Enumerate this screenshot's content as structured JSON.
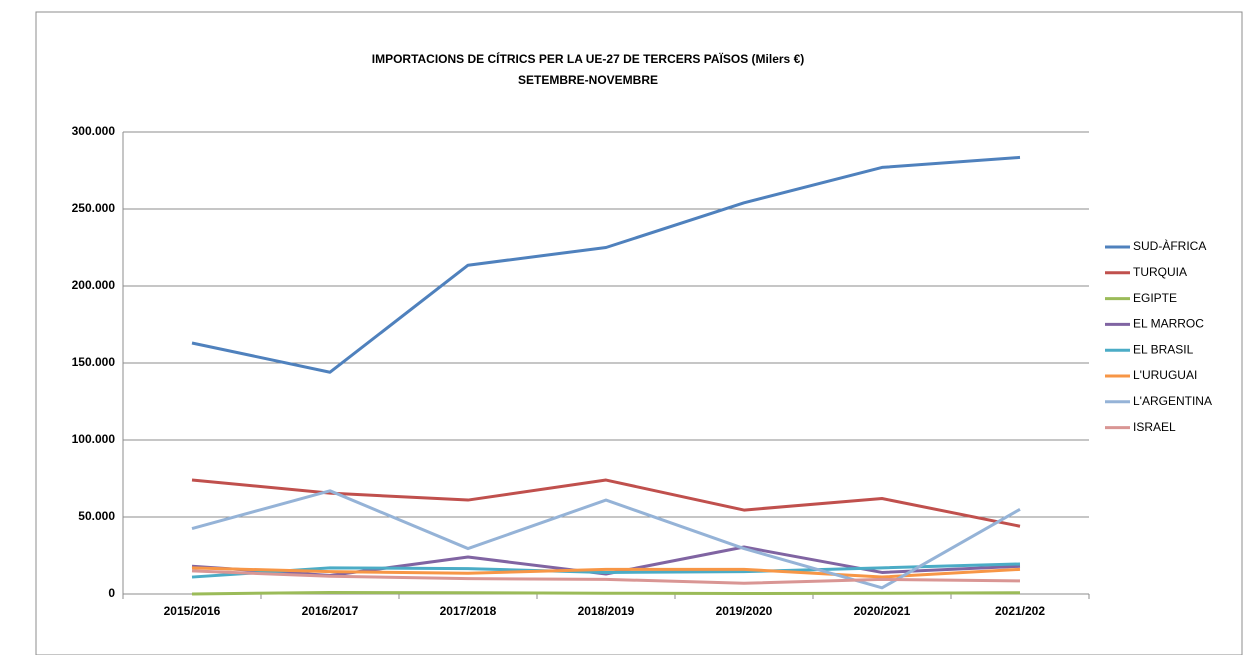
{
  "chart_data": {
    "type": "line",
    "title": "IMPORTACIONS DE CÍTRICS PER LA UE-27 DE TERCERS PAÏSOS (Milers €)",
    "subtitle": "SETEMBRE-NOVEMBRE",
    "categories": [
      "2015/2016",
      "2016/2017",
      "2017/2018",
      "2018/2019",
      "2019/2020",
      "2020/2021",
      "2021/202"
    ],
    "series": [
      {
        "name": "SUD-ÀFRICA",
        "color": "#4f81bd",
        "values": [
          163000,
          144000,
          213500,
          225000,
          254000,
          277000,
          283500
        ]
      },
      {
        "name": "TURQUIA",
        "color": "#c0504d",
        "values": [
          74000,
          65500,
          61000,
          74000,
          54500,
          62000,
          44000
        ]
      },
      {
        "name": "EGIPTE",
        "color": "#9bbb59",
        "values": [
          0,
          1000,
          800,
          500,
          300,
          500,
          800
        ]
      },
      {
        "name": "EL MARROC",
        "color": "#8064a2",
        "values": [
          18000,
          12000,
          24000,
          13000,
          30500,
          14000,
          18000
        ]
      },
      {
        "name": "EL BRASIL",
        "color": "#4bacc6",
        "values": [
          11000,
          17000,
          16500,
          14000,
          14500,
          17000,
          19500
        ]
      },
      {
        "name": "L'URUGUAI",
        "color": "#f79646",
        "values": [
          17000,
          14500,
          13500,
          16000,
          16000,
          11000,
          16000
        ]
      },
      {
        "name": "L'ARGENTINA",
        "color": "#95b3d7",
        "values": [
          42500,
          67000,
          29500,
          61000,
          29500,
          4000,
          55000
        ]
      },
      {
        "name": "ISRAEL",
        "color": "#d99694",
        "values": [
          15000,
          11500,
          10000,
          9500,
          7000,
          9500,
          8500
        ]
      }
    ],
    "ylim": [
      0,
      300000
    ],
    "yticks": [
      0,
      {
        "value": 50000,
        "label": "50.000"
      },
      {
        "value": 100000,
        "label": "100.000"
      },
      {
        "value": 150000,
        "label": "150.000"
      },
      {
        "value": 200000,
        "label": "200.000"
      },
      {
        "value": 250000,
        "label": "250.000"
      },
      {
        "value": 300000,
        "label": "300.000"
      }
    ],
    "grid": true,
    "legend": "right"
  }
}
